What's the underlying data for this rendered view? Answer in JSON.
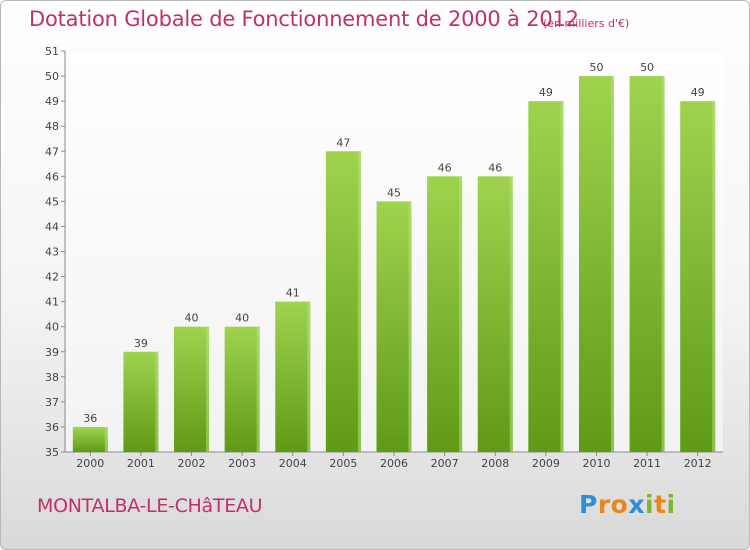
{
  "header": {
    "title": "Dotation Globale de Fonctionnement de 2000 à 2012",
    "unit": "(en milliers d'€)"
  },
  "footer": {
    "commune": "MONTALBA-LE-CHâTEAU",
    "brand": "Proxiti"
  },
  "colors": {
    "title": "#c2306b",
    "bar_top": "#9fd34e",
    "bar_bottom": "#5f9a16",
    "axis": "#8a8a8a"
  },
  "chart_data": {
    "type": "bar",
    "categories": [
      "2000",
      "2001",
      "2002",
      "2003",
      "2004",
      "2005",
      "2006",
      "2007",
      "2008",
      "2009",
      "2010",
      "2011",
      "2012"
    ],
    "values": [
      36,
      39,
      40,
      40,
      41,
      47,
      45,
      46,
      46,
      49,
      50,
      50,
      49
    ],
    "title": "Dotation Globale de Fonctionnement de 2000 à 2012",
    "subtitle": "(en milliers d'€)",
    "xlabel": "",
    "ylabel": "",
    "ylim": [
      35,
      51
    ],
    "yticks": [
      35,
      36,
      37,
      38,
      39,
      40,
      41,
      42,
      43,
      44,
      45,
      46,
      47,
      48,
      49,
      50,
      51
    ],
    "grid": false,
    "data_labels": true
  }
}
